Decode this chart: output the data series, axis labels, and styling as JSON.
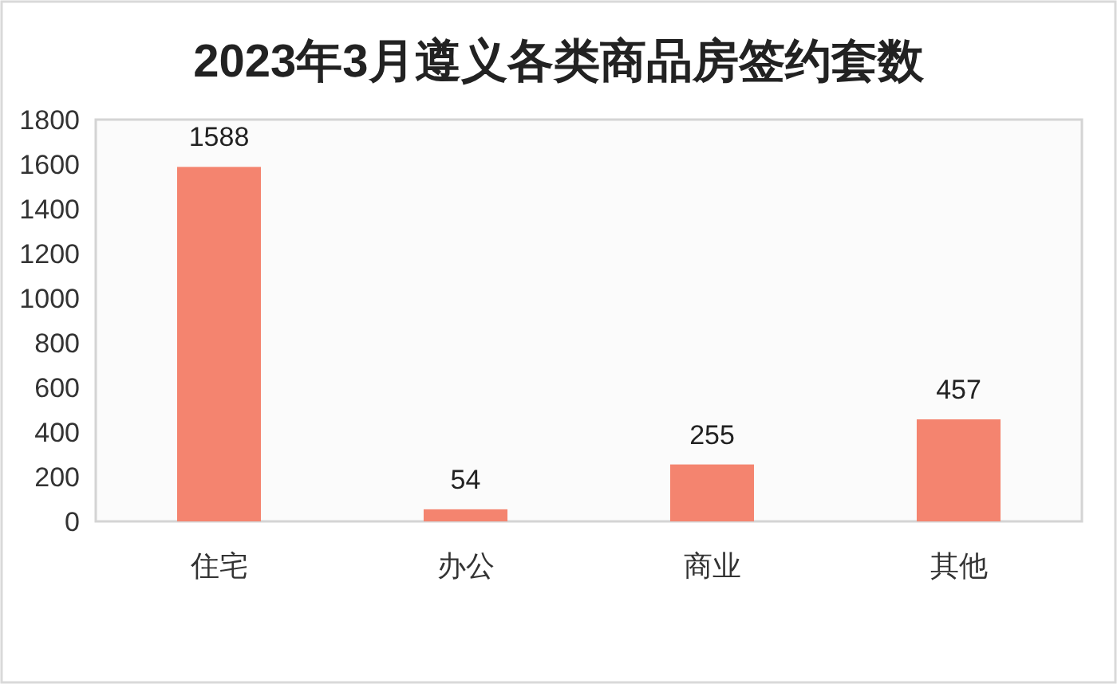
{
  "chart_data": {
    "type": "bar",
    "title": "2023年3月遵义各类商品房签约套数",
    "categories": [
      "住宅",
      "办公",
      "商业",
      "其他"
    ],
    "values": [
      1588,
      54,
      255,
      457
    ],
    "color": "#f4846f",
    "ylim": [
      0,
      1800
    ],
    "yticks": [
      0,
      200,
      400,
      600,
      800,
      1000,
      1200,
      1400,
      1600,
      1800
    ],
    "data_labels": true
  }
}
